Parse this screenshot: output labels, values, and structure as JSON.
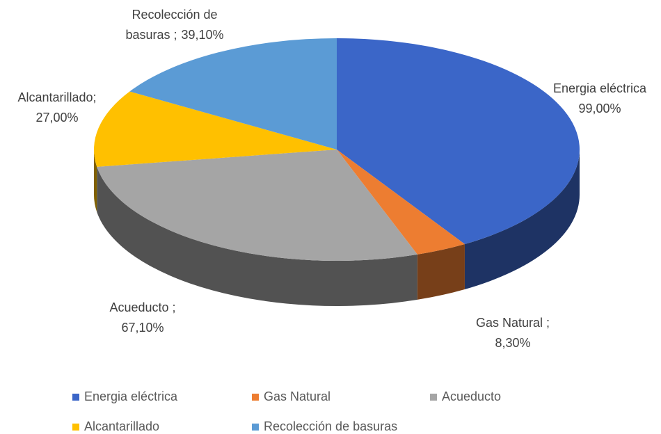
{
  "chart_data": {
    "type": "pie3d",
    "categories": [
      "Energia eléctrica",
      "Gas Natural",
      "Acueducto",
      "Alcantarillado",
      "Recolección de basuras"
    ],
    "values": [
      99,
      8.3,
      67.1,
      27,
      39.1
    ],
    "value_labels": [
      "99,00%",
      "8,30%",
      "67,10%",
      "27,00%",
      "39,10%"
    ],
    "label_text": [
      [
        "Energia eléctrica"
      ],
      [
        "Gas Natural ;"
      ],
      [
        "Acueducto ;"
      ],
      [
        "Alcantarillado;"
      ],
      [
        "Recolección de",
        "basuras ;"
      ]
    ],
    "colors": [
      "#3b66c8",
      "#ed7d31",
      "#a5a5a5",
      "#ffc000",
      "#5b9bd5"
    ],
    "legend": "bottom"
  }
}
